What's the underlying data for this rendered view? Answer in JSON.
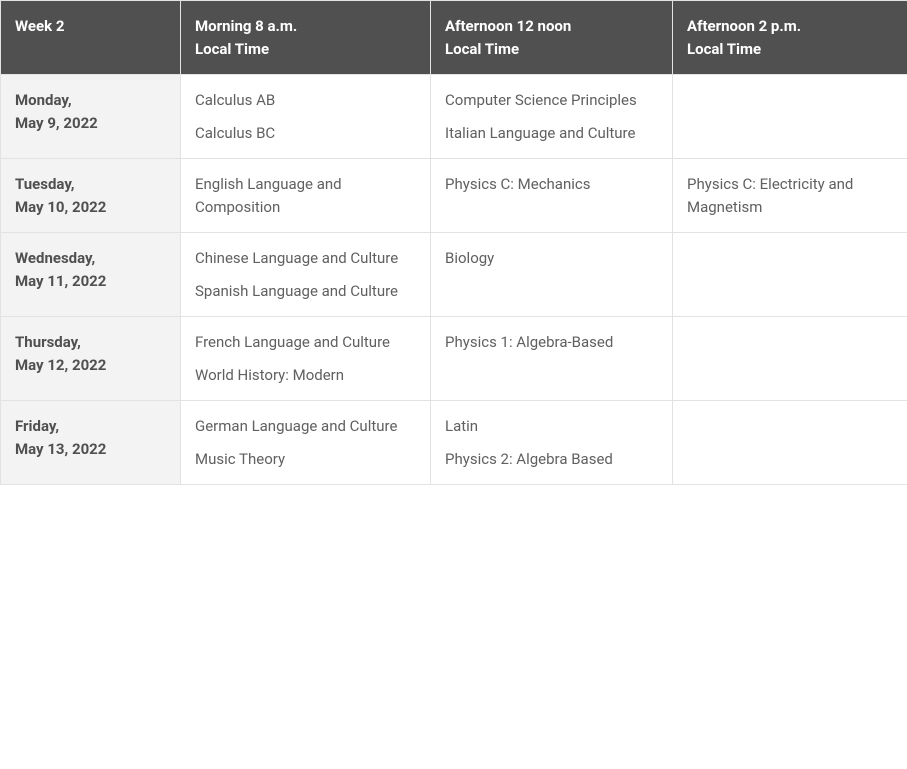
{
  "colors": {
    "header_bg": "#505050",
    "header_text": "#ffffff",
    "date_bg": "#f3f3f3",
    "date_text": "#505050",
    "cell_bg": "#ffffff",
    "cell_text": "#606060",
    "border": "#e2e2e2"
  },
  "headers": [
    {
      "line1": "Week 2",
      "line2": ""
    },
    {
      "line1": "Morning 8 a.m.",
      "line2": "Local Time"
    },
    {
      "line1": "Afternoon 12 noon",
      "line2": "Local Time"
    },
    {
      "line1": "Afternoon 2 p.m.",
      "line2": "Local Time"
    }
  ],
  "rows": [
    {
      "day_line1": "Monday,",
      "day_line2": "May 9, 2022",
      "morning": [
        "Calculus AB",
        "Calculus BC"
      ],
      "noon": [
        "Computer Science Principles",
        "Italian Language and Culture"
      ],
      "two_pm": []
    },
    {
      "day_line1": "Tuesday,",
      "day_line2": "May 10, 2022",
      "morning": [
        "English Language and Composition"
      ],
      "noon": [
        "Physics C: Mechanics"
      ],
      "two_pm": [
        "Physics C: Electricity and Magnetism"
      ]
    },
    {
      "day_line1": "Wednesday,",
      "day_line2": "May 11, 2022",
      "morning": [
        "Chinese Language and Culture",
        "Spanish Language and Culture"
      ],
      "noon": [
        "Biology"
      ],
      "two_pm": []
    },
    {
      "day_line1": "Thursday,",
      "day_line2": "May 12, 2022",
      "morning": [
        "French Language and Culture",
        "World History: Modern"
      ],
      "noon": [
        "Physics 1: Algebra-Based"
      ],
      "two_pm": []
    },
    {
      "day_line1": "Friday,",
      "day_line2": "May 13, 2022",
      "morning": [
        "German Language and Culture",
        "Music Theory"
      ],
      "noon": [
        "Latin",
        "Physics 2: Algebra Based"
      ],
      "two_pm": []
    }
  ]
}
